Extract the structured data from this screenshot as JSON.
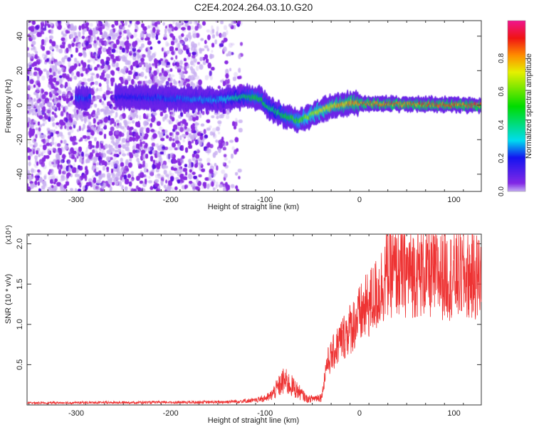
{
  "chart_data": [
    {
      "type": "heatmap",
      "title": "C2E4.2024.264.03.10.G20",
      "xlabel": "Height of straight line (km)",
      "ylabel": "Frequency (Hz)",
      "xlim": [
        -352,
        129
      ],
      "ylim": [
        -50,
        49
      ],
      "xticks": [
        -300,
        -200,
        -100,
        0,
        100
      ],
      "yticks": [
        -40,
        -20,
        0,
        20,
        40
      ],
      "colorbar": {
        "label": "Normalized spectral amplitude",
        "range": [
          0,
          1
        ],
        "ticks": [
          "0.0",
          "0.2",
          "0.4",
          "0.6",
          "0.8"
        ]
      },
      "ridge": [
        [
          -295,
          4
        ],
        [
          -255,
          5
        ],
        [
          -200,
          4
        ],
        [
          -150,
          3
        ],
        [
          -120,
          5
        ],
        [
          -105,
          4
        ],
        [
          -95,
          -2
        ],
        [
          -80,
          -6
        ],
        [
          -65,
          -9
        ],
        [
          -55,
          -7
        ],
        [
          -45,
          -4
        ],
        [
          -35,
          -2
        ],
        [
          -25,
          0
        ],
        [
          -10,
          1
        ],
        [
          0,
          1
        ],
        [
          129,
          0
        ]
      ],
      "ridge_amplitude": [
        [
          -295,
          0.25
        ],
        [
          -260,
          0.2
        ],
        [
          -150,
          0.3
        ],
        [
          -110,
          0.55
        ],
        [
          -90,
          0.45
        ],
        [
          -50,
          0.7
        ],
        [
          -20,
          0.85
        ],
        [
          0,
          0.92
        ],
        [
          129,
          0.95
        ]
      ],
      "noise_extent_km": -130
    },
    {
      "type": "line",
      "xlabel": "Height of straight line (km)",
      "ylabel": "SNR (10 * v/v)",
      "yscale_label": "(x10⁴)",
      "xlim": [
        -352,
        129
      ],
      "ylim": [
        0,
        2.12
      ],
      "xticks": [
        -300,
        -200,
        -100,
        0,
        100
      ],
      "yticks": [
        "0.5",
        "1.0",
        "1.5",
        "2.0"
      ],
      "ytick_values": [
        0.5,
        1.0,
        1.5,
        2.0
      ],
      "series": [
        {
          "name": "SNR",
          "color": "#ee3333",
          "envelope": [
            [
              -352,
              0.02
            ],
            [
              -150,
              0.03
            ],
            [
              -110,
              0.05
            ],
            [
              -95,
              0.1
            ],
            [
              -80,
              0.3
            ],
            [
              -70,
              0.22
            ],
            [
              -55,
              0.07
            ],
            [
              -40,
              0.1
            ],
            [
              -35,
              0.5
            ],
            [
              -20,
              0.8
            ],
            [
              0,
              1.1
            ],
            [
              20,
              1.4
            ],
            [
              30,
              1.65
            ],
            [
              60,
              1.65
            ],
            [
              100,
              1.6
            ],
            [
              129,
              1.6
            ]
          ]
        }
      ]
    }
  ]
}
